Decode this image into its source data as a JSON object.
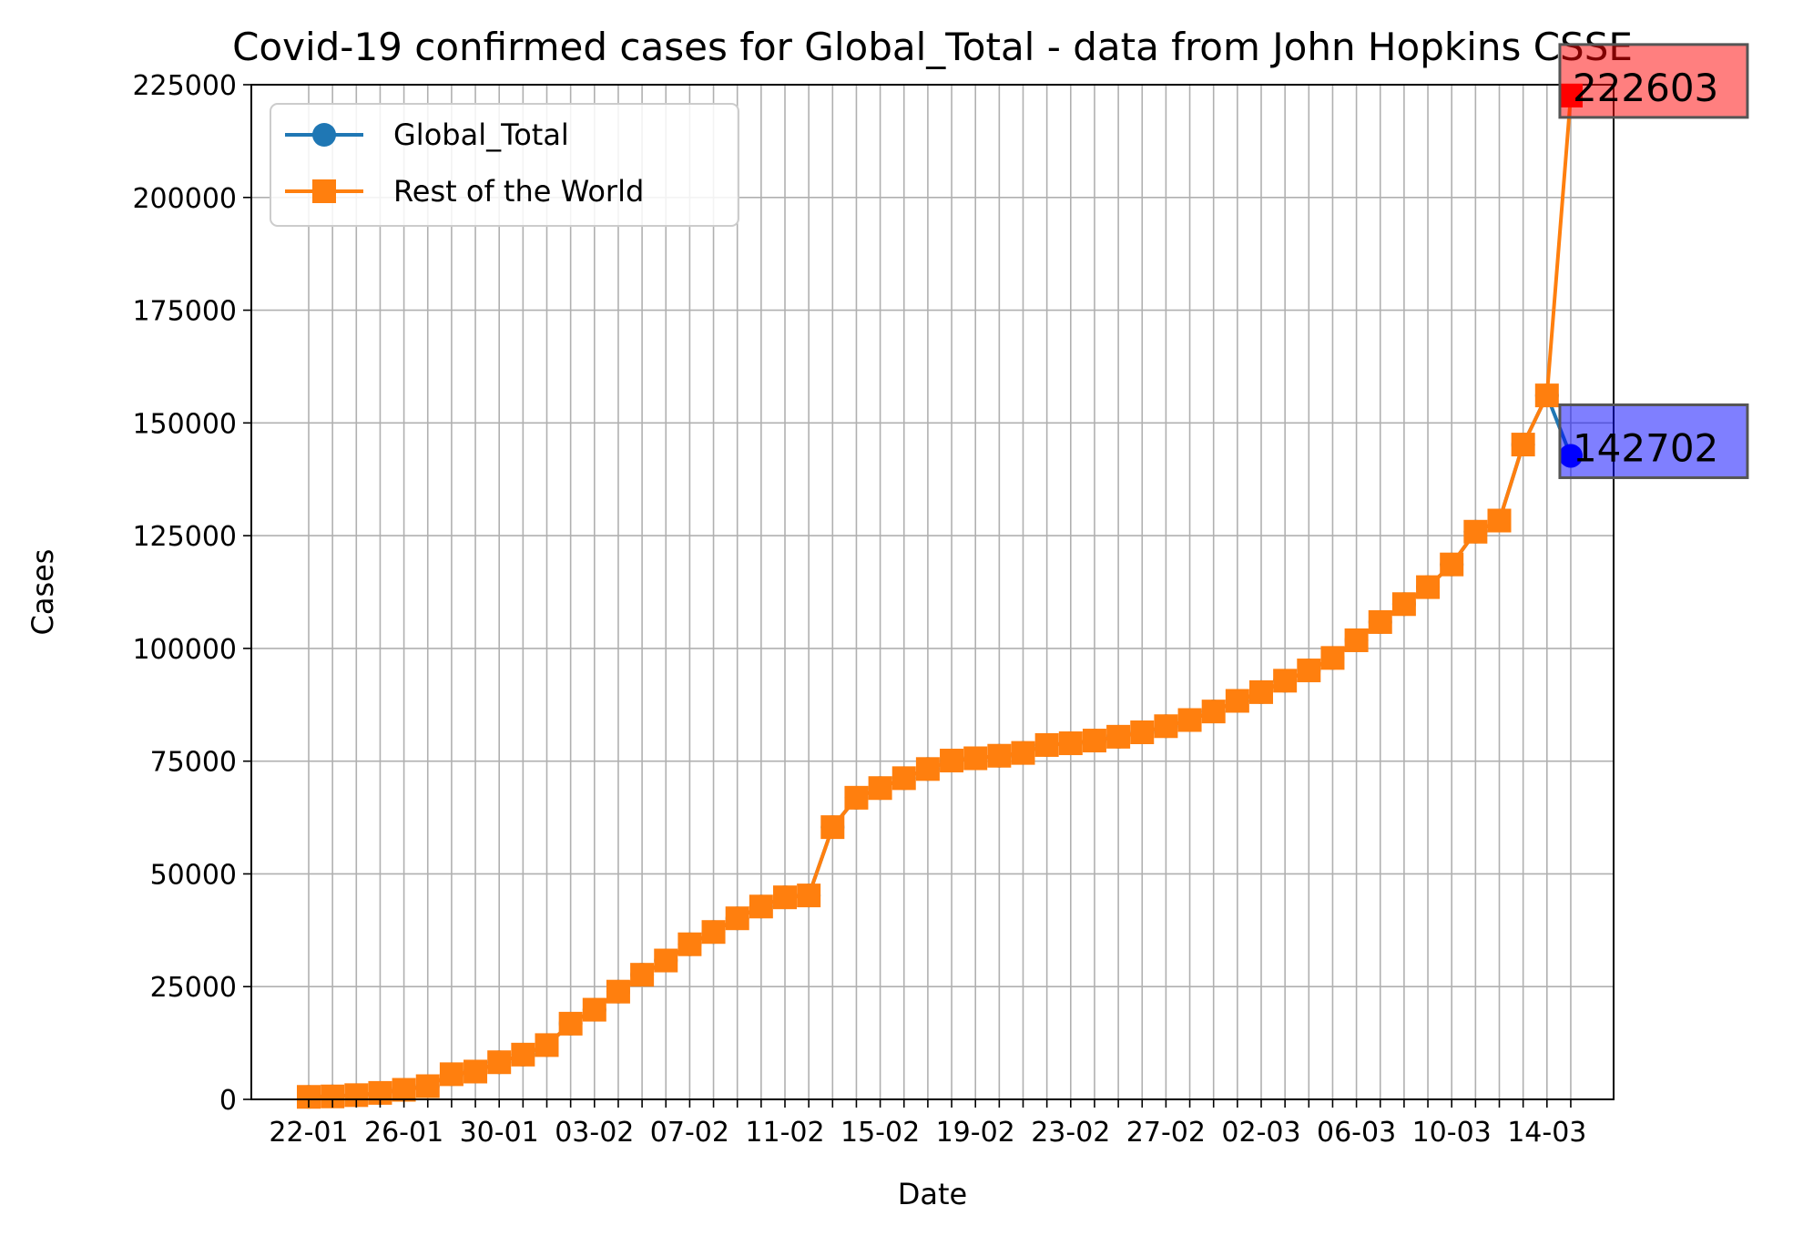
{
  "chart_data": {
    "type": "line",
    "title": "Covid-19 confirmed cases for Global_Total - data from John Hopkins CSSE",
    "xlabel": "Date",
    "ylabel": "Cases",
    "ylim": [
      0,
      225000
    ],
    "yticks": [
      0,
      25000,
      50000,
      75000,
      100000,
      125000,
      150000,
      175000,
      200000,
      225000
    ],
    "x": [
      "22-01",
      "23-01",
      "24-01",
      "25-01",
      "26-01",
      "27-01",
      "28-01",
      "29-01",
      "30-01",
      "31-01",
      "01-02",
      "02-02",
      "03-02",
      "04-02",
      "05-02",
      "06-02",
      "07-02",
      "08-02",
      "09-02",
      "10-02",
      "11-02",
      "12-02",
      "13-02",
      "14-02",
      "15-02",
      "16-02",
      "17-02",
      "18-02",
      "19-02",
      "20-02",
      "21-02",
      "22-02",
      "23-02",
      "24-02",
      "25-02",
      "26-02",
      "27-02",
      "28-02",
      "29-02",
      "01-03",
      "02-03",
      "03-03",
      "04-03",
      "05-03",
      "06-03",
      "07-03",
      "08-03",
      "09-03",
      "10-03",
      "11-03",
      "12-03",
      "13-03",
      "14-03",
      "15-03"
    ],
    "xtick_labels": [
      "22-01",
      "26-01",
      "30-01",
      "03-02",
      "07-02",
      "11-02",
      "15-02",
      "19-02",
      "23-02",
      "27-02",
      "02-03",
      "06-03",
      "10-03",
      "14-03"
    ],
    "grid": true,
    "legend_position": "top-left",
    "series": [
      {
        "name": "Global_Total",
        "color": "#1f77b4",
        "marker": "circle",
        "values": [
          555,
          654,
          941,
          1434,
          2118,
          2927,
          5578,
          6166,
          8234,
          9927,
          12038,
          16787,
          19881,
          23892,
          27635,
          30794,
          34391,
          37120,
          40150,
          42762,
          44802,
          45221,
          60368,
          66885,
          69030,
          71224,
          73258,
          75136,
          75639,
          76197,
          76823,
          78579,
          78965,
          79568,
          80413,
          81395,
          82754,
          84120,
          86011,
          88369,
          90306,
          92840,
          95120,
          97886,
          101801,
          105847,
          109821,
          113590,
          118620,
          125875,
          128352,
          145205,
          156101,
          142702
        ],
        "annotation": {
          "text": "142702",
          "color": "#0000ff"
        }
      },
      {
        "name": "Rest of the World",
        "color": "#ff7f0e",
        "marker": "square",
        "values": [
          555,
          654,
          941,
          1434,
          2118,
          2927,
          5578,
          6166,
          8234,
          9927,
          12038,
          16787,
          19881,
          23892,
          27635,
          30794,
          34391,
          37120,
          40150,
          42762,
          44802,
          45221,
          60368,
          66885,
          69030,
          71224,
          73258,
          75136,
          75639,
          76197,
          76823,
          78579,
          78965,
          79568,
          80413,
          81395,
          82754,
          84120,
          86011,
          88369,
          90306,
          92840,
          95120,
          97886,
          101801,
          105847,
          109821,
          113590,
          118620,
          125875,
          128352,
          145205,
          156101,
          222603
        ],
        "annotation": {
          "text": "222603",
          "color": "#ff0000"
        }
      }
    ]
  }
}
